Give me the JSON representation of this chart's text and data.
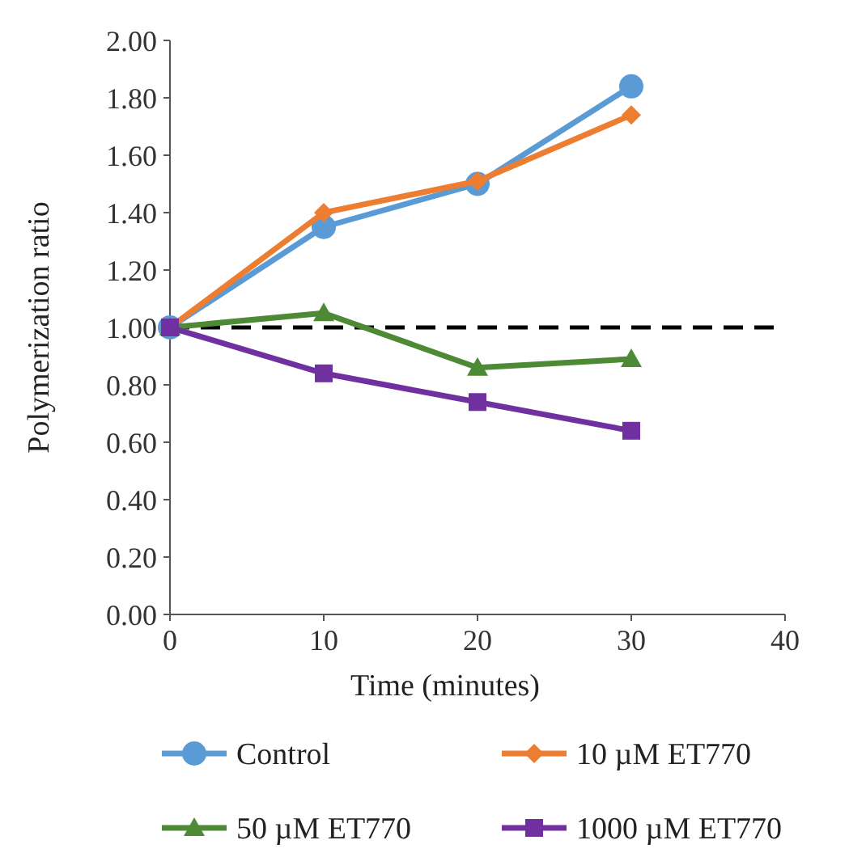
{
  "chart_data": {
    "type": "line",
    "xlabel": "Time (minutes)",
    "ylabel": "Polymerization ratio",
    "x": [
      0,
      10,
      20,
      30
    ],
    "xlim": [
      0,
      40
    ],
    "xticks": [
      0,
      10,
      20,
      30,
      40
    ],
    "ylim": [
      0,
      2
    ],
    "yticks": [
      {
        "value": 0,
        "label": "0.00"
      },
      {
        "value": 0.2,
        "label": "0.20"
      },
      {
        "value": 0.4,
        "label": "0.40"
      },
      {
        "value": 0.6,
        "label": "0.60"
      },
      {
        "value": 0.8,
        "label": "0.80"
      },
      {
        "value": 1,
        "label": "1.00"
      },
      {
        "value": 1.2,
        "label": "1.20"
      },
      {
        "value": 1.4,
        "label": "1.40"
      },
      {
        "value": 1.6,
        "label": "1.60"
      },
      {
        "value": 1.8,
        "label": "1.80"
      },
      {
        "value": 2,
        "label": "2.00"
      }
    ],
    "series": [
      {
        "name": "Control",
        "color": "#5b9bd5",
        "marker": "circle",
        "values": [
          1,
          1.35,
          1.5,
          1.84
        ]
      },
      {
        "name": "10 µM ET770",
        "color": "#ed7d31",
        "marker": "diamond",
        "values": [
          1,
          1.4,
          1.51,
          1.74
        ]
      },
      {
        "name": "50 µM ET770",
        "color": "#4e8a35",
        "marker": "triangle",
        "values": [
          1,
          1.05,
          0.86,
          0.89
        ]
      },
      {
        "name": "1000 µM ET770",
        "color": "#7030a0",
        "marker": "square",
        "values": [
          1,
          0.84,
          0.74,
          0.64
        ]
      }
    ],
    "ref_lines": [
      {
        "axis": "y",
        "value": 1,
        "color": "#000000",
        "line_style": "dashed"
      }
    ],
    "legend": "bottom",
    "grid": false
  }
}
